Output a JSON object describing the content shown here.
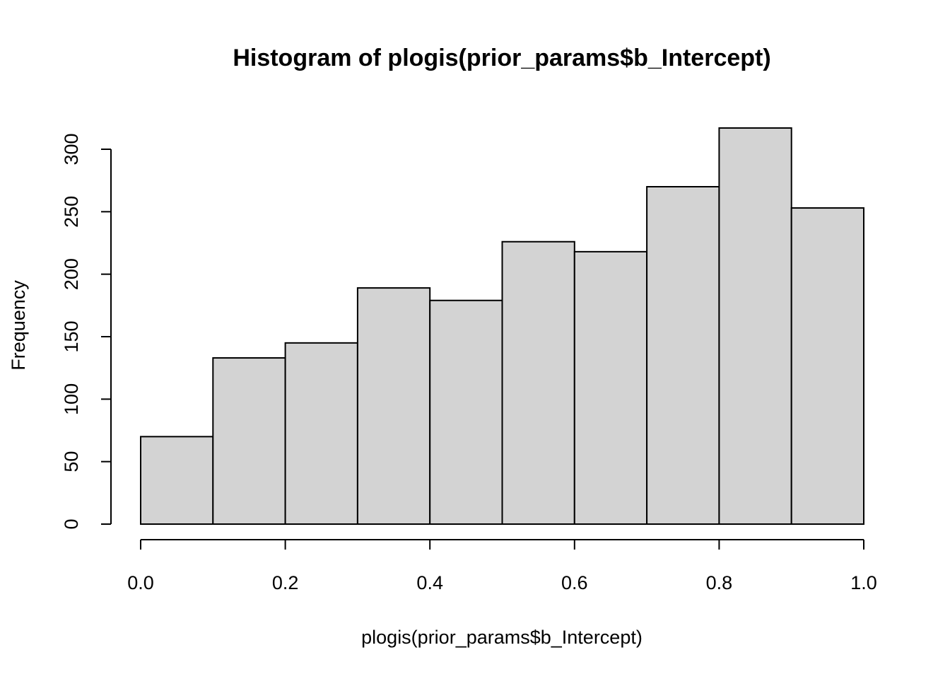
{
  "chart_data": {
    "type": "bar",
    "title": "Histogram of plogis(prior_params$b_Intercept)",
    "xlabel": "plogis(prior_params$b_Intercept)",
    "ylabel": "Frequency",
    "bin_edges": [
      0.0,
      0.1,
      0.2,
      0.3,
      0.4,
      0.5,
      0.6,
      0.7,
      0.8,
      0.9,
      1.0
    ],
    "values": [
      70,
      133,
      145,
      189,
      179,
      226,
      218,
      270,
      317,
      253
    ],
    "xlim": [
      0.0,
      1.0
    ],
    "ylim": [
      0,
      300
    ],
    "x_ticks": [
      0.0,
      0.2,
      0.4,
      0.6,
      0.8,
      1.0
    ],
    "x_tick_labels": [
      "0.0",
      "0.2",
      "0.4",
      "0.6",
      "0.8",
      "1.0"
    ],
    "y_ticks": [
      0,
      50,
      100,
      150,
      200,
      250,
      300
    ],
    "y_tick_labels": [
      "0",
      "50",
      "100",
      "150",
      "200",
      "250",
      "300"
    ],
    "grid": false,
    "legend": "none",
    "bar_fill": "#d3d3d3",
    "bar_stroke": "#000000"
  }
}
